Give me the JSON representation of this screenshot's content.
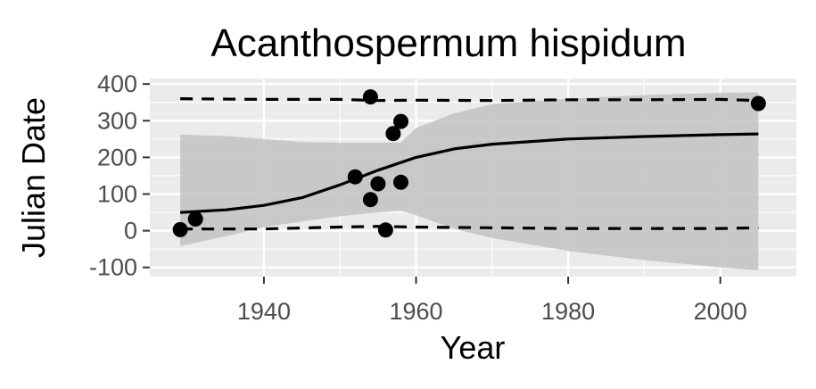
{
  "chart_data": {
    "type": "scatter",
    "title": "Acanthospermum hispidum",
    "xlabel": "Year",
    "ylabel": "Julian Date",
    "xlim": [
      1925,
      2010
    ],
    "ylim": [
      -125,
      415
    ],
    "x_ticks": [
      1940,
      1960,
      1980,
      2000
    ],
    "y_ticks": [
      -100,
      0,
      100,
      200,
      300,
      400
    ],
    "grid": true,
    "legend": "none",
    "colors": {
      "panel": "#ebebeb",
      "grid": "#ffffff",
      "ribbon": "#c2c2c2",
      "points": "#000000",
      "lines": "#000000"
    },
    "points": [
      {
        "x": 1929,
        "y": 3
      },
      {
        "x": 1931,
        "y": 32
      },
      {
        "x": 1952,
        "y": 147
      },
      {
        "x": 1954,
        "y": 365
      },
      {
        "x": 1954,
        "y": 85
      },
      {
        "x": 1955,
        "y": 128
      },
      {
        "x": 1956,
        "y": 2
      },
      {
        "x": 1957,
        "y": 265
      },
      {
        "x": 1958,
        "y": 298
      },
      {
        "x": 1958,
        "y": 132
      },
      {
        "x": 2005,
        "y": 347
      }
    ],
    "fit_line": {
      "x": [
        1929,
        1935,
        1940,
        1945,
        1950,
        1955,
        1960,
        1965,
        1970,
        1980,
        1990,
        2000,
        2005
      ],
      "y": [
        50,
        57,
        69,
        90,
        125,
        165,
        200,
        223,
        236,
        250,
        257,
        262,
        264
      ]
    },
    "confidence_band": {
      "x": [
        1929,
        1935,
        1940,
        1945,
        1950,
        1955,
        1958,
        1960,
        1965,
        1970,
        1980,
        1990,
        2000,
        2005
      ],
      "upper": [
        262,
        258,
        250,
        242,
        240,
        240,
        240,
        280,
        320,
        345,
        360,
        370,
        376,
        377
      ],
      "lower": [
        -42,
        -15,
        10,
        25,
        40,
        50,
        55,
        42,
        5,
        -20,
        -55,
        -80,
        -100,
        -108
      ]
    },
    "upper_bound_line": {
      "x": [
        1929,
        1940,
        1950,
        1955,
        1960,
        1970,
        1980,
        1990,
        2000,
        2005
      ],
      "y": [
        360,
        358,
        358,
        355,
        356,
        355,
        357,
        357,
        358,
        355
      ]
    },
    "lower_bound_line": {
      "x": [
        1929,
        1940,
        1950,
        1955,
        1960,
        1970,
        1980,
        1990,
        2000,
        2005
      ],
      "y": [
        5,
        5,
        10,
        12,
        10,
        8,
        6,
        6,
        6,
        8
      ]
    }
  }
}
